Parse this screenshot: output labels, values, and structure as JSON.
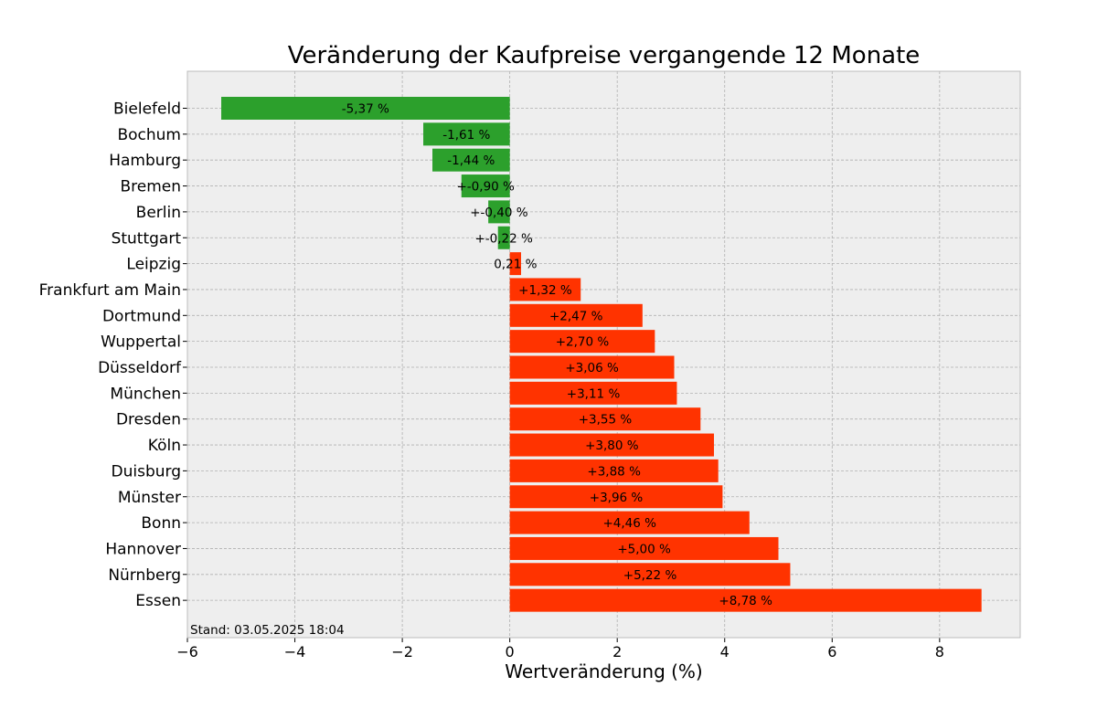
{
  "chart_data": {
    "type": "bar",
    "orientation": "horizontal",
    "title": "Veränderung der Kaufpreise vergangende 12 Monate",
    "xlabel": "Wertveränderung (%)",
    "ylabel": "",
    "xlim": [
      -6,
      9.5
    ],
    "xticks": [
      -6,
      -4,
      -2,
      0,
      2,
      4,
      6,
      8
    ],
    "xtick_labels": [
      "−6",
      "−4",
      "−2",
      "0",
      "2",
      "4",
      "6",
      "8"
    ],
    "grid": true,
    "categories": [
      "Bielefeld",
      "Bochum",
      "Hamburg",
      "Bremen",
      "Berlin",
      "Stuttgart",
      "Leipzig",
      "Frankfurt am Main",
      "Dortmund",
      "Wuppertal",
      "Düsseldorf",
      "München",
      "Dresden",
      "Köln",
      "Duisburg",
      "Münster",
      "Bonn",
      "Hannover",
      "Nürnberg",
      "Essen"
    ],
    "values": [
      -5.37,
      -1.61,
      -1.44,
      -0.9,
      -0.4,
      -0.22,
      0.21,
      1.32,
      2.47,
      2.7,
      3.06,
      3.11,
      3.55,
      3.8,
      3.88,
      3.96,
      4.46,
      5.0,
      5.22,
      8.78
    ],
    "data_labels": [
      "-5,37 %",
      "-1,61 %",
      "-1,44 %",
      "+-0,90 %",
      "+-0,40 %",
      "+-0,22 %",
      "0,21 %",
      "+1,32 %",
      "+2,47 %",
      "+2,70 %",
      "+3,06 %",
      "+3,11 %",
      "+3,55 %",
      "+3,80 %",
      "+3,88 %",
      "+3,96 %",
      "+4,46 %",
      "+5,00 %",
      "+5,22 %",
      "+8,78 %"
    ],
    "colors": {
      "negative": "#2ca02c",
      "positive": "#ff3300",
      "plot_background": "#eeeeee",
      "grid": "#b0b0b0",
      "frame": "#bcbcbc"
    },
    "annotation": "Stand: 03.05.2025 18:04"
  }
}
